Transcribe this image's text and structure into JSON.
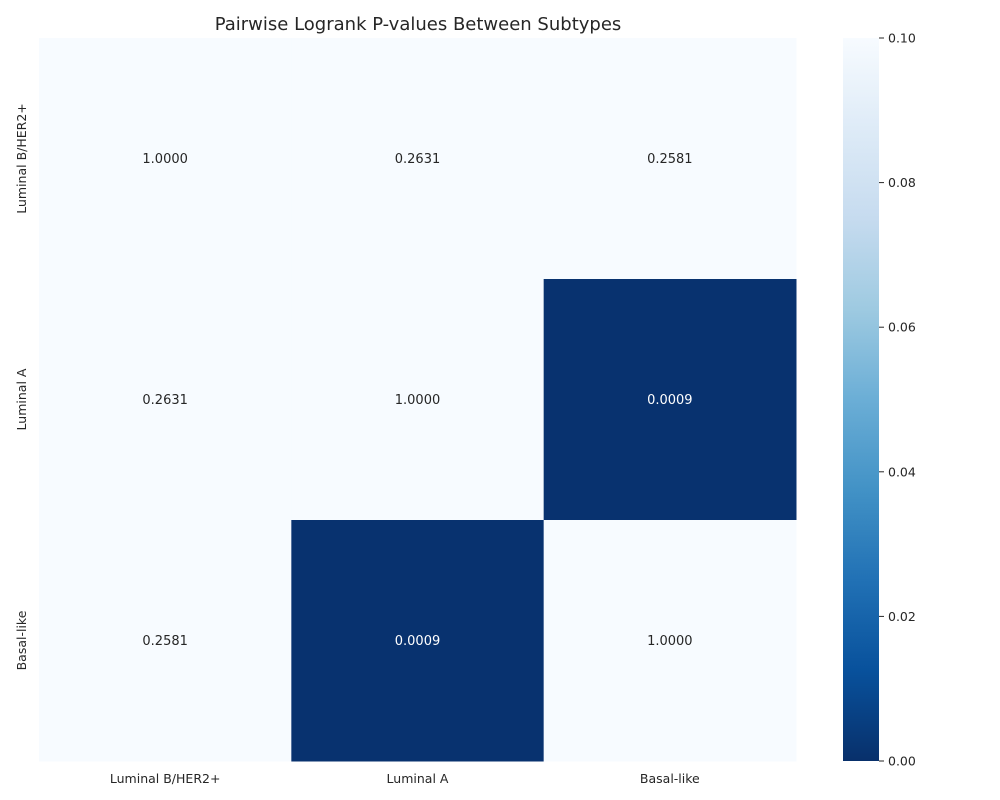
{
  "chart_data": {
    "type": "heatmap",
    "title": "Pairwise Logrank P-values Between Subtypes",
    "xlabel": "",
    "ylabel": "",
    "x_categories": [
      "Luminal B/HER2+",
      "Luminal A",
      "Basal-like"
    ],
    "y_categories": [
      "Luminal B/HER2+",
      "Luminal A",
      "Basal-like"
    ],
    "values": [
      [
        1.0,
        0.2631,
        0.2581
      ],
      [
        0.2631,
        1.0,
        0.0009
      ],
      [
        0.2581,
        0.0009,
        1.0
      ]
    ],
    "cell_labels": [
      [
        "1.0000",
        "0.2631",
        "0.2581"
      ],
      [
        "0.2631",
        "1.0000",
        "0.0009"
      ],
      [
        "0.2581",
        "0.0009",
        "1.0000"
      ]
    ],
    "colorbar": {
      "range": [
        0,
        0.1
      ],
      "ticks": [
        "0.00",
        "0.02",
        "0.04",
        "0.06",
        "0.08",
        "0.10"
      ],
      "tick_values": [
        0,
        0.02,
        0.04,
        0.06,
        0.08,
        0.1
      ]
    },
    "colormap": "Blues_r",
    "colormap_stops": [
      "#08306b",
      "#08519c",
      "#2171b5",
      "#4292c6",
      "#6baed6",
      "#9ecae1",
      "#c6dbef",
      "#deebf7",
      "#f7fbff"
    ],
    "grid": false
  }
}
